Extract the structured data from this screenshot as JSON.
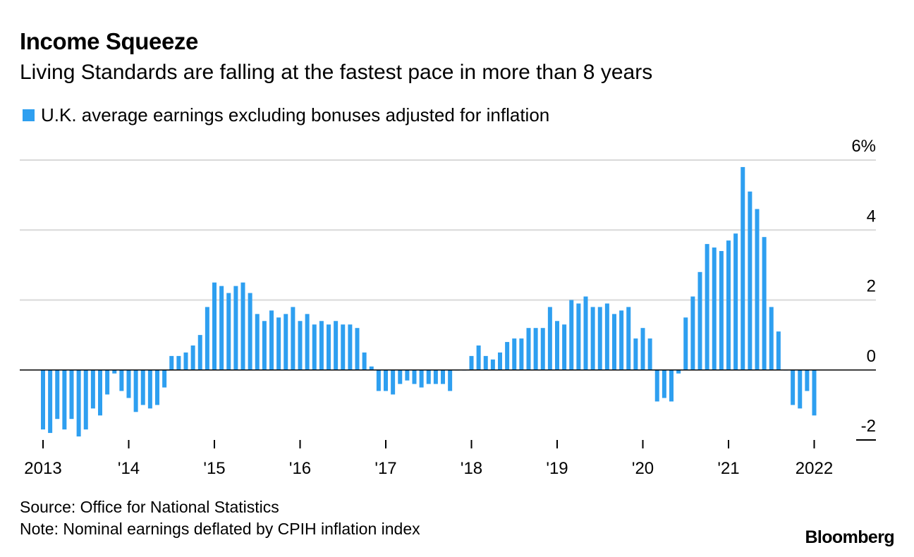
{
  "header": {
    "title": "Income Squeeze",
    "subtitle": "Living Standards are falling at the fastest pace in more than 8 years"
  },
  "footer": {
    "source": "Source: Office for National Statistics",
    "note": "Note: Nominal earnings deflated by CPIH inflation index",
    "brand": "Bloomberg"
  },
  "colors": {
    "bar": "#2E9FF0",
    "grid": "#d9d9d9",
    "zero_line": "#000000"
  },
  "chart_data": {
    "type": "bar",
    "title": "Income Squeeze",
    "subtitle": "Living Standards are falling at the fastest pace in more than 8 years",
    "legend": [
      "U.K. average earnings excluding bonuses adjusted for inflation"
    ],
    "legend_position": "top-left",
    "ylabel": "",
    "xlabel": "",
    "ylim": [
      -2,
      6
    ],
    "y_ticks": [
      {
        "value": 6,
        "label": "6%"
      },
      {
        "value": 4,
        "label": "4"
      },
      {
        "value": 2,
        "label": "2"
      },
      {
        "value": 0,
        "label": "0"
      },
      {
        "value": -2,
        "label": "-2"
      }
    ],
    "x_ticks": [
      {
        "month_index": 0,
        "label": "2013"
      },
      {
        "month_index": 12,
        "label": "'14"
      },
      {
        "month_index": 24,
        "label": "'15"
      },
      {
        "month_index": 36,
        "label": "'16"
      },
      {
        "month_index": 48,
        "label": "'17"
      },
      {
        "month_index": 60,
        "label": "'18"
      },
      {
        "month_index": 72,
        "label": "'19"
      },
      {
        "month_index": 84,
        "label": "'20"
      },
      {
        "month_index": 96,
        "label": "'21"
      },
      {
        "month_index": 108,
        "label": "2022"
      }
    ],
    "series": [
      {
        "name": "U.K. average earnings excluding bonuses adjusted for inflation",
        "start": "Jan 2013",
        "frequency": "monthly",
        "values": [
          -1.7,
          -1.8,
          -1.4,
          -1.7,
          -1.4,
          -1.9,
          -1.7,
          -1.1,
          -1.3,
          -0.7,
          -0.1,
          -0.6,
          -0.8,
          -1.2,
          -1.0,
          -1.1,
          -1.0,
          -0.5,
          0.4,
          0.4,
          0.5,
          0.7,
          1.0,
          1.8,
          2.5,
          2.4,
          2.2,
          2.4,
          2.5,
          2.2,
          1.6,
          1.4,
          1.7,
          1.5,
          1.6,
          1.8,
          1.4,
          1.6,
          1.3,
          1.4,
          1.3,
          1.4,
          1.3,
          1.3,
          1.2,
          0.5,
          0.1,
          -0.6,
          -0.6,
          -0.7,
          -0.4,
          -0.3,
          -0.4,
          -0.5,
          -0.4,
          -0.4,
          -0.4,
          -0.6,
          0.0,
          0.0,
          0.4,
          0.7,
          0.4,
          0.3,
          0.5,
          0.8,
          0.9,
          0.9,
          1.2,
          1.2,
          1.2,
          1.8,
          1.4,
          1.3,
          2.0,
          1.9,
          2.1,
          1.8,
          1.8,
          1.9,
          1.6,
          1.7,
          1.8,
          0.9,
          1.2,
          0.9,
          -0.9,
          -0.8,
          -0.9,
          -0.1,
          1.5,
          2.1,
          2.8,
          3.6,
          3.5,
          3.4,
          3.7,
          3.9,
          5.8,
          5.1,
          4.6,
          3.8,
          1.8,
          1.1,
          0.0,
          -1.0,
          -1.1,
          -0.6,
          -1.3
        ]
      }
    ]
  }
}
